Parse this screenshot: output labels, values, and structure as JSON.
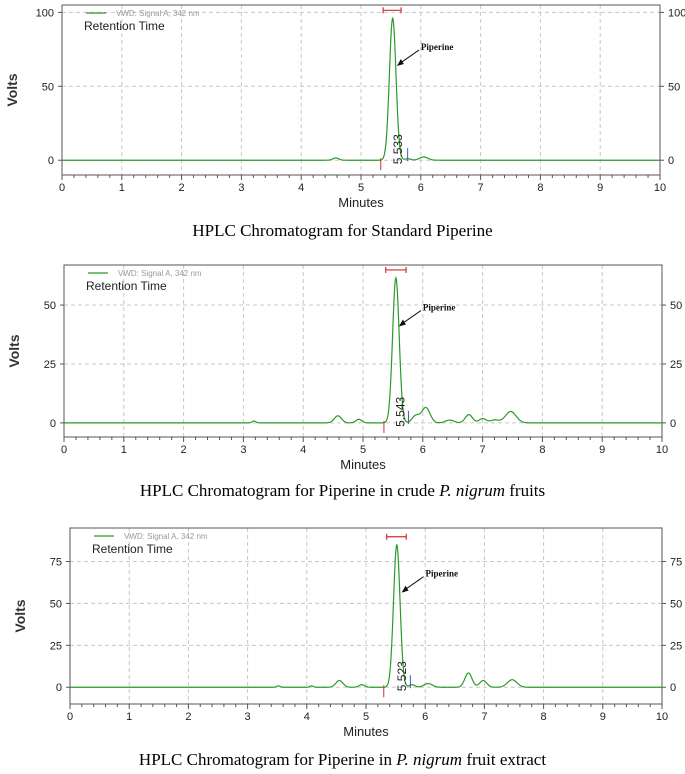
{
  "chart_data": [
    {
      "type": "line",
      "title": "HPLC Chromatogram for Standard Piperine",
      "xlabel": "Minutes",
      "ylabel": "Volts",
      "xlim": [
        0,
        10
      ],
      "ylim": [
        -10,
        105
      ],
      "x_ticks": [
        "0",
        "1",
        "2",
        "3",
        "4",
        "5",
        "6",
        "7",
        "8",
        "9",
        "10"
      ],
      "y_ticks": [
        0,
        50,
        100
      ],
      "grid": true,
      "legend": {
        "series_name": "VWD: Signal A, 342 nm",
        "subtitle": "Retention Time",
        "placement": "top-left"
      },
      "color": "#2a9a2a",
      "baseline": 0,
      "peaks": [
        {
          "x": 4.58,
          "height": 1.5,
          "width": 0.05
        },
        {
          "x": 5.53,
          "height": 96,
          "width": 0.055
        },
        {
          "x": 5.78,
          "height": 1.0,
          "width": 0.05
        },
        {
          "x": 6.05,
          "height": 2.2,
          "width": 0.07
        }
      ],
      "annotation": {
        "label": "Piperine",
        "x": 5.55
      },
      "peak_label": "5.533",
      "peak_rt": 5.533,
      "peak_top": 96,
      "integration_marks": [
        5.33,
        5.78
      ],
      "retention_bracket": [
        5.37,
        5.67
      ]
    },
    {
      "type": "line",
      "title": "HPLC Chromatogram for Piperine in crude P. nigrum fruits",
      "xlabel": "Minutes",
      "ylabel": "Volts",
      "xlim": [
        0,
        10
      ],
      "ylim": [
        -6,
        67
      ],
      "x_ticks": [
        "0",
        "1",
        "2",
        "3",
        "4",
        "5",
        "6",
        "7",
        "8",
        "9",
        "10"
      ],
      "y_ticks": [
        0,
        25,
        50
      ],
      "grid": true,
      "legend": {
        "series_name": "VWD: Signal A, 342 nm",
        "subtitle": "Retention Time",
        "placement": "top-left"
      },
      "color": "#2a9a2a",
      "baseline": 0,
      "peaks": [
        {
          "x": 3.18,
          "height": 0.8,
          "width": 0.03
        },
        {
          "x": 4.58,
          "height": 3.0,
          "width": 0.06
        },
        {
          "x": 4.93,
          "height": 1.5,
          "width": 0.05
        },
        {
          "x": 5.55,
          "height": 61.5,
          "width": 0.055
        },
        {
          "x": 5.88,
          "height": 3.0,
          "width": 0.06
        },
        {
          "x": 6.05,
          "height": 6.5,
          "width": 0.07
        },
        {
          "x": 6.45,
          "height": 1.2,
          "width": 0.07
        },
        {
          "x": 6.77,
          "height": 3.5,
          "width": 0.06
        },
        {
          "x": 7.0,
          "height": 1.8,
          "width": 0.06
        },
        {
          "x": 7.2,
          "height": 1.2,
          "width": 0.07
        },
        {
          "x": 7.47,
          "height": 4.8,
          "width": 0.09
        }
      ],
      "annotation": {
        "label": "Piperine",
        "x": 5.55
      },
      "peak_label": "5.543",
      "peak_rt": 5.543,
      "peak_top": 61.5,
      "integration_marks": [
        5.35,
        5.76
      ],
      "retention_bracket": [
        5.38,
        5.72
      ]
    },
    {
      "type": "line",
      "title": "HPLC Chromatogram for Piperine in P. nigrum fruit extract",
      "xlabel": "Minutes",
      "ylabel": "Volts",
      "xlim": [
        0,
        10
      ],
      "ylim": [
        -10,
        95
      ],
      "x_ticks": [
        "0",
        "1",
        "2",
        "3",
        "4",
        "5",
        "6",
        "7",
        "8",
        "9",
        "10"
      ],
      "y_ticks": [
        0,
        25,
        50,
        75
      ],
      "grid": true,
      "legend": {
        "series_name": "VWD: Signal A, 342 nm",
        "subtitle": "Retention Time",
        "placement": "top-left"
      },
      "color": "#2a9a2a",
      "baseline": 0,
      "peaks": [
        {
          "x": 3.52,
          "height": 0.8,
          "width": 0.03
        },
        {
          "x": 4.08,
          "height": 0.8,
          "width": 0.03
        },
        {
          "x": 4.55,
          "height": 4.0,
          "width": 0.06
        },
        {
          "x": 4.93,
          "height": 1.5,
          "width": 0.05
        },
        {
          "x": 5.52,
          "height": 85,
          "width": 0.055
        },
        {
          "x": 5.78,
          "height": 1.5,
          "width": 0.05
        },
        {
          "x": 6.05,
          "height": 2.2,
          "width": 0.07
        },
        {
          "x": 6.73,
          "height": 8.5,
          "width": 0.06
        },
        {
          "x": 6.98,
          "height": 4.0,
          "width": 0.06
        },
        {
          "x": 7.47,
          "height": 4.5,
          "width": 0.08
        }
      ],
      "annotation": {
        "label": "Piperine",
        "x": 5.55
      },
      "peak_label": "5.523",
      "peak_rt": 5.523,
      "peak_top": 85,
      "integration_marks": [
        5.3,
        5.75
      ],
      "retention_bracket": [
        5.35,
        5.68
      ]
    }
  ],
  "captions": [
    {
      "text": "HPLC Chromatogram for Standard Piperine"
    },
    {
      "pre": "HPLC Chromatogram for Piperine in crude ",
      "italic": "P. nigrum",
      "post": " fruits"
    },
    {
      "pre": "HPLC Chromatogram for Piperine in ",
      "italic": "P. nigrum",
      "post": " fruit extract"
    }
  ]
}
